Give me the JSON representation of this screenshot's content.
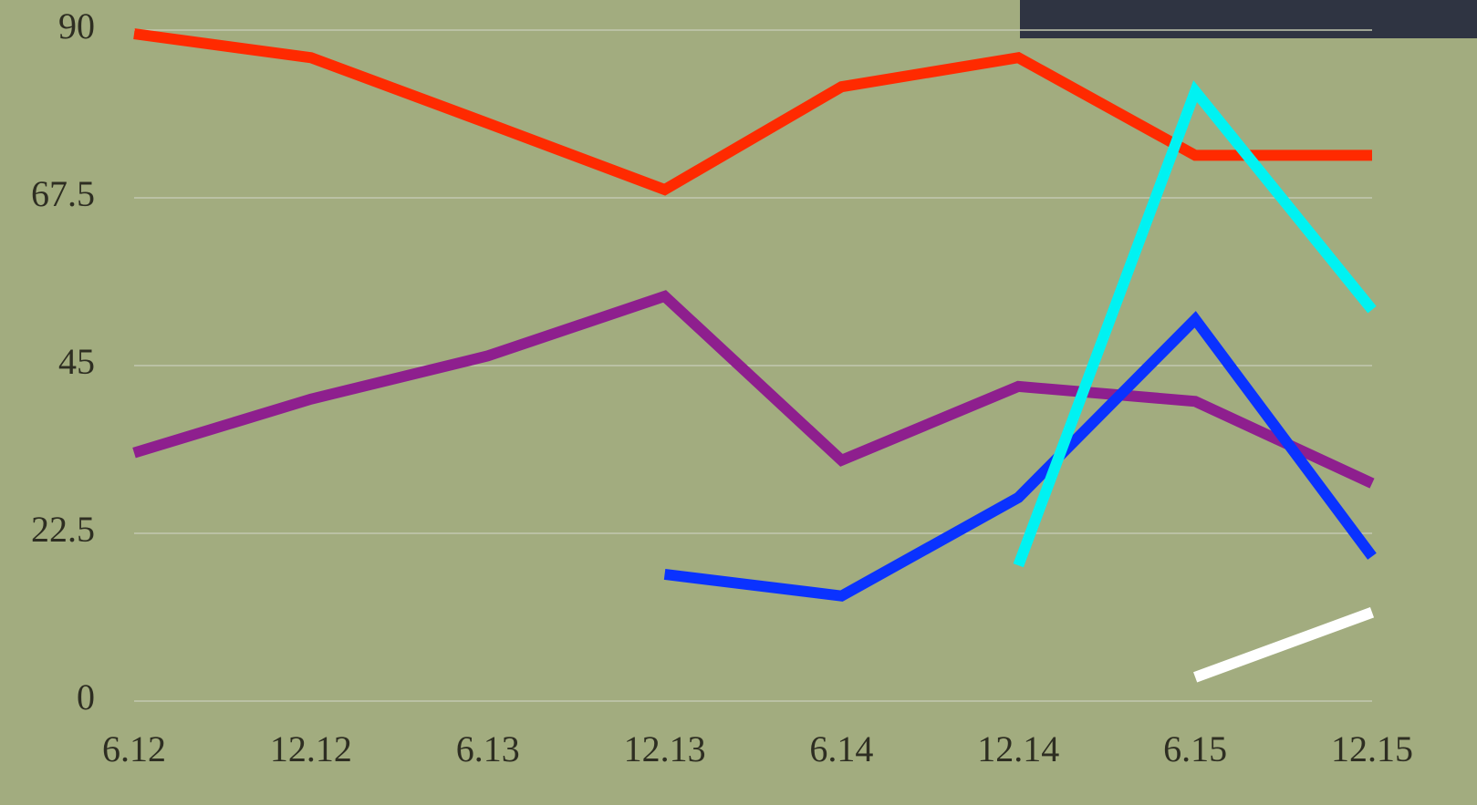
{
  "chart_data": {
    "type": "line",
    "categories": [
      "6.12",
      "12.12",
      "6.13",
      "12.13",
      "6.14",
      "12.14",
      "6.15",
      "12.15"
    ],
    "series": [
      {
        "color": "#ff2a00",
        "values": [
          89.5,
          86.3,
          77.5,
          68.6,
          82.4,
          86.3,
          73.2,
          73.2
        ]
      },
      {
        "color": "#8e1f8e",
        "values": [
          33.3,
          40.5,
          46.3,
          54.3,
          32.3,
          42.2,
          40.2,
          29.2
        ]
      },
      {
        "color": "#0a32ff",
        "values": [
          null,
          null,
          null,
          17,
          14.1,
          27.3,
          51.2,
          19.4
        ]
      },
      {
        "color": "#00f2f2",
        "values": [
          null,
          null,
          null,
          null,
          null,
          18.2,
          81.8,
          52.5
        ]
      },
      {
        "color": "#ffffff",
        "values": [
          null,
          null,
          null,
          null,
          null,
          null,
          3.2,
          11.9
        ]
      }
    ],
    "ylim": [
      0,
      90
    ],
    "yticks": [
      0,
      22.5,
      45,
      67.5,
      90
    ],
    "grid": true
  }
}
